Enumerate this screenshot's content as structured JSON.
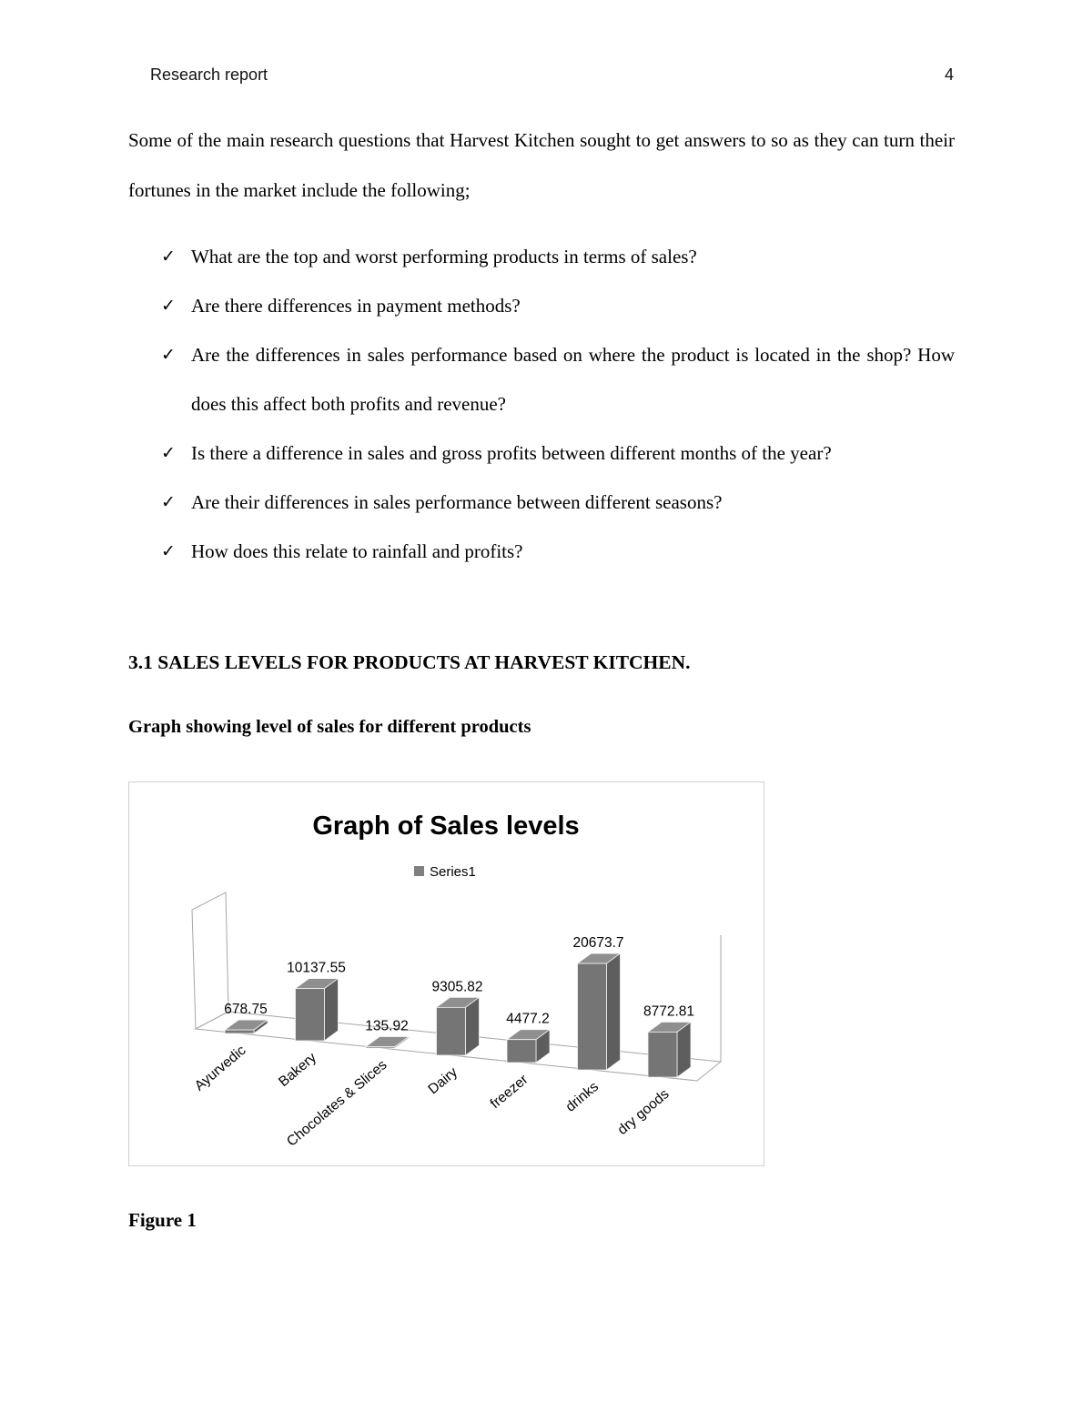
{
  "header": {
    "title": "Research report",
    "page_number": "4"
  },
  "intro": "Some of the main research questions that Harvest Kitchen sought to get answers to so as they can turn their fortunes in the market include the following;",
  "bullet_marker": "✓",
  "bullets": [
    "What are the top and worst performing products in terms of sales?",
    "Are there differences in payment methods?",
    "Are the differences in sales performance based on where the product is located in the shop? How does this affect both profits and revenue?",
    "Is there a difference in sales and gross profits between different months of the year?",
    "Are their differences in sales performance between different seasons?",
    "How does this relate to rainfall and profits?"
  ],
  "section_heading": "3.1 SALES LEVELS FOR PRODUCTS AT HARVEST KITCHEN.",
  "graph_caption": "Graph showing level of sales for different products",
  "figure_label": "Figure 1",
  "chart_data": {
    "type": "bar",
    "style": "3d-clustered-column",
    "title": "Graph of Sales levels",
    "legend": {
      "position": "top",
      "entries": [
        "Series1"
      ]
    },
    "categories": [
      "Ayurvedic",
      "Bakery",
      "Chocolates & Slices",
      "Dairy",
      "freezer",
      "drinks",
      "dry goods"
    ],
    "series": [
      {
        "name": "Series1",
        "values": [
          678.75,
          10137.55,
          135.92,
          9305.82,
          4477.2,
          20673.7,
          8772.81
        ]
      }
    ],
    "data_labels": [
      "678.75",
      "10137.55",
      "135.92",
      "9305.82",
      "4477.2",
      "20673.7",
      "8772.81"
    ],
    "axes_visible": false,
    "gridlines": false,
    "bar_color": "#757575",
    "legend_marker_color": "#7f7f7f",
    "chart_border_color": "#d0d0d0"
  }
}
